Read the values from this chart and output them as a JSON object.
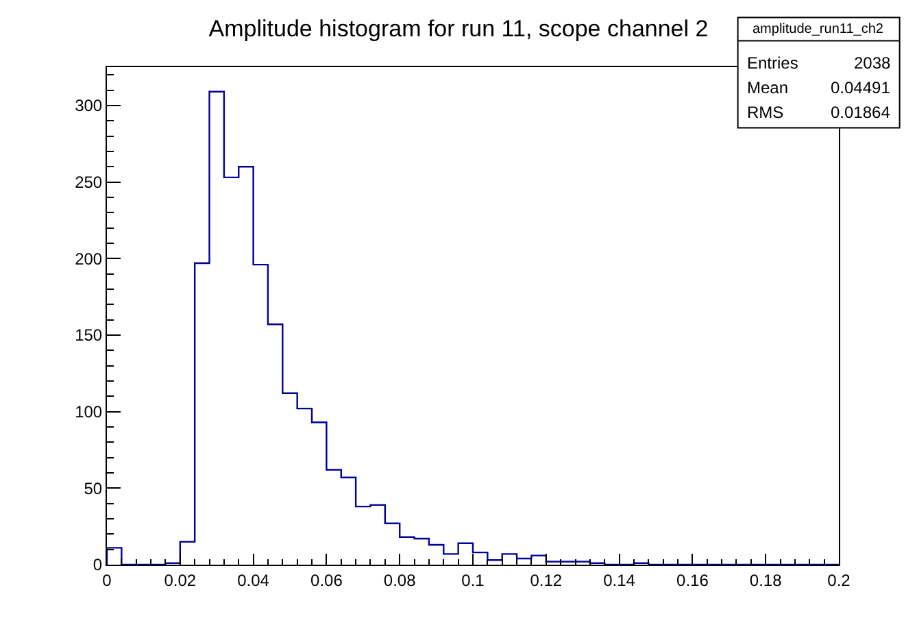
{
  "chart_data": {
    "type": "histogram",
    "title": "Amplitude histogram for run 11, scope channel 2",
    "bins": [
      0,
      0.004,
      0.008,
      0.012,
      0.016,
      0.02,
      0.024,
      0.028,
      0.032,
      0.036,
      0.04,
      0.044,
      0.048,
      0.052,
      0.056,
      0.06,
      0.064,
      0.068,
      0.072,
      0.076,
      0.08,
      0.084,
      0.088,
      0.092,
      0.096,
      0.1,
      0.104,
      0.108,
      0.112,
      0.116,
      0.12,
      0.124,
      0.128,
      0.132,
      0.136,
      0.14,
      0.144,
      0.148,
      0.152,
      0.156,
      0.16,
      0.164,
      0.168,
      0.172,
      0.176,
      0.18,
      0.184,
      0.188,
      0.192,
      0.196,
      0.2
    ],
    "values": [
      11,
      0,
      0,
      0,
      1,
      15,
      197,
      309,
      253,
      260,
      196,
      157,
      112,
      102,
      93,
      62,
      57,
      38,
      39,
      27,
      18,
      17,
      13,
      7,
      14,
      8,
      3,
      7,
      4,
      6,
      2,
      2,
      2,
      1,
      0,
      0,
      1,
      0,
      0,
      0,
      0,
      0,
      0,
      0,
      0,
      0,
      0,
      0,
      0,
      0
    ],
    "color": "#000099",
    "xlim": [
      0,
      0.2
    ],
    "xticks": [
      0,
      0.02,
      0.04,
      0.06,
      0.08,
      0.1,
      0.12,
      0.14,
      0.16,
      0.18,
      0.2
    ],
    "ylim": [
      0,
      325
    ],
    "yticks": [
      0,
      50,
      100,
      150,
      200,
      250,
      300
    ],
    "annotations": [
      "amplitude_run11_ch2",
      "Entries",
      "2038",
      "Mean",
      "0.04491",
      "RMS",
      "0.01864"
    ]
  }
}
